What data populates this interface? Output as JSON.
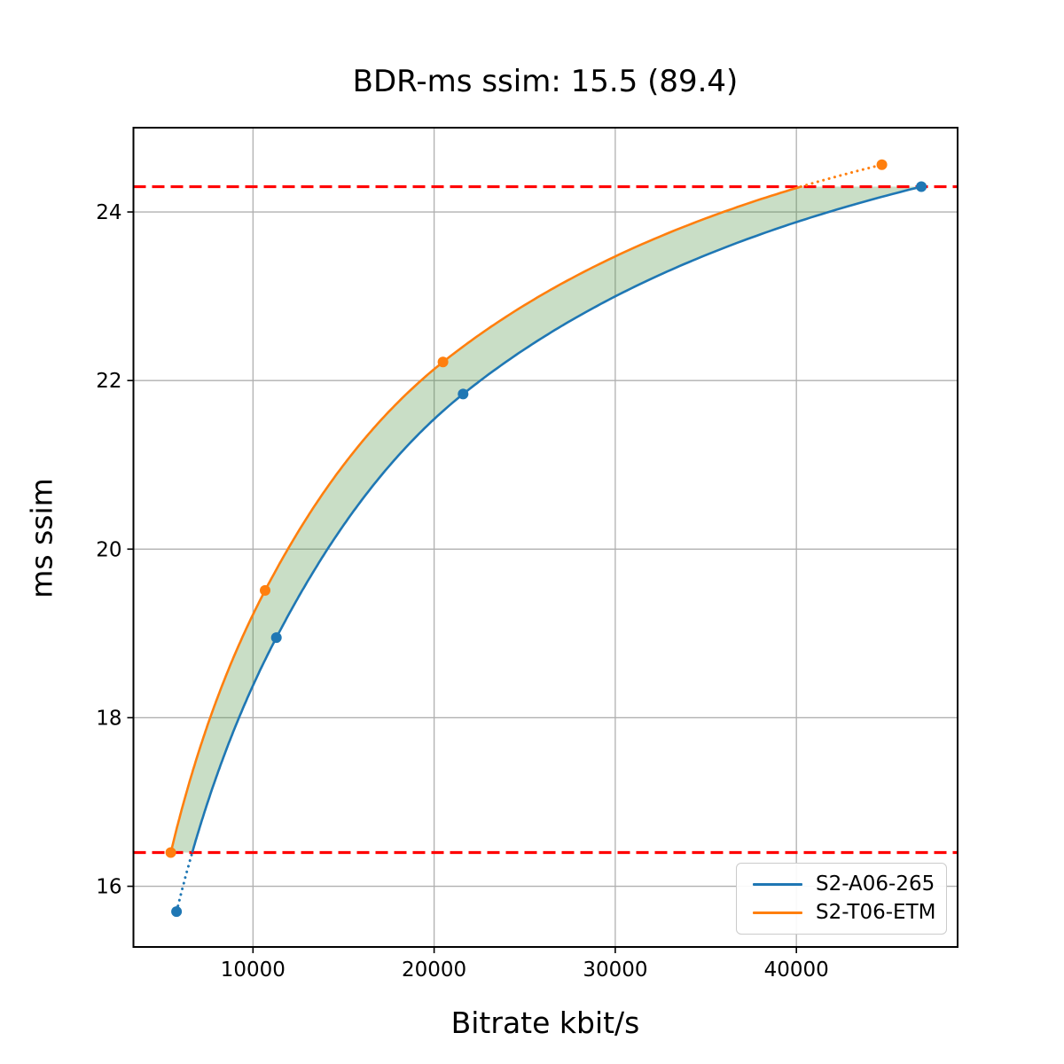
{
  "chart_data": {
    "type": "line",
    "title": "BDR-ms ssim: 15.5 (89.4)",
    "xlabel": "Bitrate kbit/s",
    "ylabel": "ms ssim",
    "xlim": [
      3400,
      48900
    ],
    "ylim": [
      15.28,
      25.0
    ],
    "x_ticks": [
      10000,
      20000,
      30000,
      40000
    ],
    "y_ticks": [
      16,
      18,
      20,
      22,
      24
    ],
    "grid": true,
    "grid_color": "#b0b0b0",
    "legend_position": "lower right",
    "series": [
      {
        "name": "S2-A06-265",
        "color": "#1f77b4",
        "points": [
          [
            5780,
            15.7
          ],
          [
            11290,
            18.95
          ],
          [
            21600,
            21.84
          ],
          [
            46900,
            24.3
          ]
        ]
      },
      {
        "name": "S2-T06-ETM",
        "color": "#ff7f0e",
        "points": [
          [
            5460,
            16.4
          ],
          [
            10670,
            19.51
          ],
          [
            20490,
            22.22
          ],
          [
            44720,
            24.56
          ]
        ]
      }
    ],
    "reference_lines": {
      "color": "#ff0000",
      "style": "dashed",
      "values": [
        16.4,
        24.3
      ],
      "meaning": "BD overlap bounds"
    },
    "overlap_fill": {
      "color": "#4c9141",
      "opacity": 0.3,
      "between": [
        "S2-T06-ETM",
        "S2-A06-265"
      ],
      "y_range": [
        16.4,
        24.3
      ]
    }
  }
}
